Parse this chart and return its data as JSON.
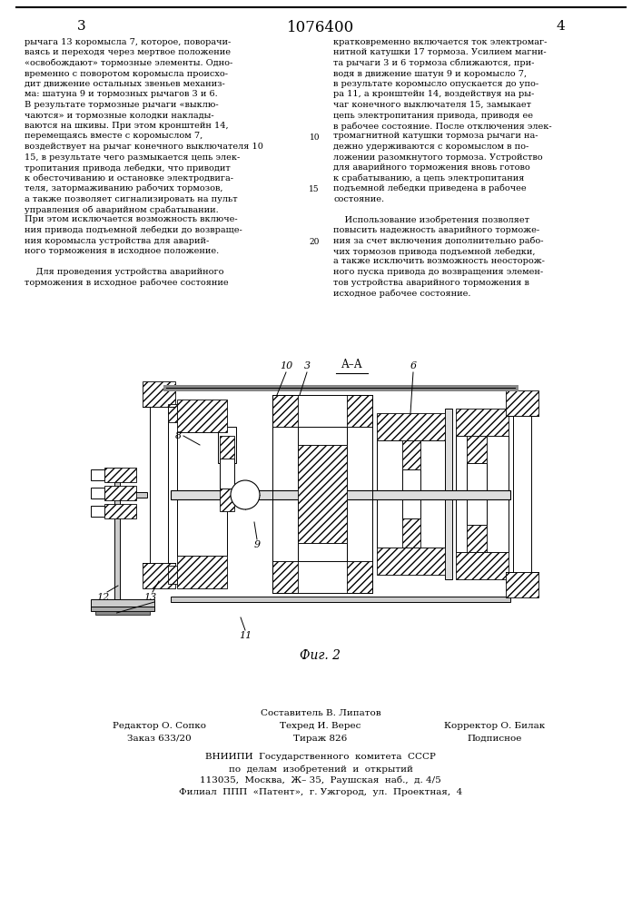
{
  "page_number_center": "1076400",
  "page_number_left": "3",
  "page_number_right": "4",
  "bg_color": "#ffffff",
  "fig_caption": "Фиг. 2",
  "section_label": "А–А",
  "col1_text": [
    "рычага 13 коромысла 7, которое, поворачи-",
    "ваясь и переходя через мертвое положение",
    "«освобождают» тормозные элементы. Одно-",
    "временно с поворотом коромысла происхо-",
    "дит движение остальных звеньев механиз-",
    "ма: шатуна 9 и тормозных рычагов 3 и 6.",
    "В результате тормозные рычаги «выклю-",
    "чаются» и тормозные колодки наклады-",
    "ваются на шкивы. При этом кронштейн 14,",
    "перемещаясь вместе с коромыслом 7,",
    "воздействует на рычаг конечного выключателя 10",
    "15, в результате чего размыкается цепь элек-",
    "тропитания привода лебедки, что приводит",
    "к обесточиванию и остановке электродвига-",
    "теля, затормаживанию рабочих тормозов,",
    "а также позволяет сигнализировать на пульт",
    "управления об аварийном срабатывании.",
    "При этом исключается возможность включе-",
    "ния привода подъемной лебедки до возвраще-",
    "ния коромысла устройства для аварий-",
    "ного торможения в исходное положение.",
    "",
    "    Для проведения устройства аварийного",
    "торможения в исходное рабочее состояние"
  ],
  "col2_text": [
    "кратковременно включается ток электромаг-",
    "нитной катушки 17 тормоза. Усилием магни-",
    "та рычаги 3 и 6 тормоза сближаются, при-",
    "водя в движение шатун 9 и коромысло 7,",
    "в результате коромысло опускается до упо-",
    "ра 11, а кронштейн 14, воздействуя на ры-",
    "чаг конечного выключателя 15, замыкает",
    "цепь электропитания привода, приводя ее",
    "в рабочее состояние. После отключения элек-",
    "тромагнитной катушки тормоза рычаги на-",
    "дежно удерживаются с коромыслом в по-",
    "ложении разомкнутого тормоза. Устройство",
    "для аварийного торможения вновь готово",
    "к срабатыванию, а цепь электропитания",
    "подъемной лебедки приведена в рабочее",
    "состояние.",
    "",
    "    Использование изобретения позволяет",
    "повысить надежность аварийного торможе-",
    "ния за счет включения дополнительно рабо-",
    "чих тормозов привода подъемной лебедки,",
    "а также исключить возможность неосторож-",
    "ного пуска привода до возвращения элемен-",
    "тов устройства аварийного торможения в",
    "исходное рабочее состояние."
  ],
  "footer_col1_title": "Редактор О. Сопко",
  "footer_col1_line1": "Заказ 633/20",
  "footer_col2_title": "Составитель В. Липатов",
  "footer_col2_line1": "Техред И. Верес",
  "footer_col2_line2": "Тираж 826",
  "footer_col3_title": "Корректор О. Билак",
  "footer_col3_line1": "Подписное",
  "footer_vniipi_line1": "ВНИИПИ  Государственного  комитета  СССР",
  "footer_vniipi_line2": "по  делам  изобретений  и  открытий",
  "footer_vniipi_line3": "113035,  Москва,  Ж– 35,  Раушская  наб.,  д. 4/5",
  "footer_vniipi_line4": "Филиал  ППП  «Патент»,  г. Ужгород,  ул.  Проектная,  4"
}
